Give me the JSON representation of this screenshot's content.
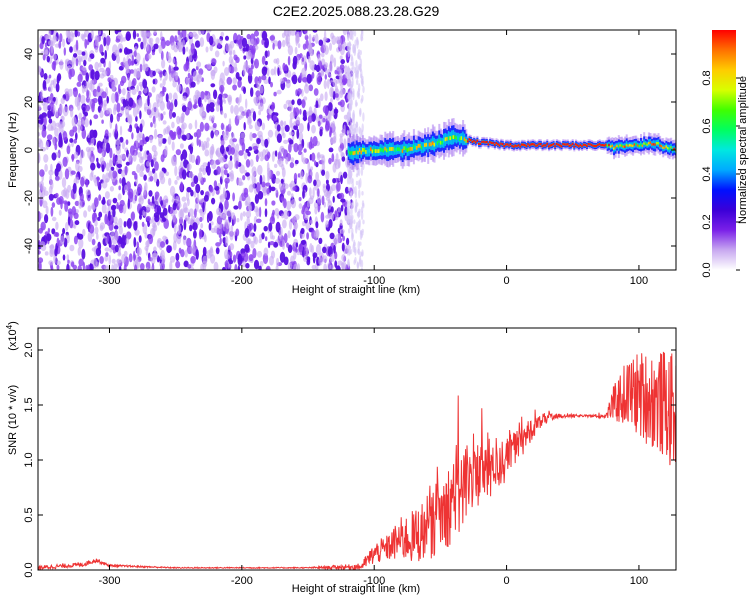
{
  "title": "C2E2.2025.088.23.28.G29",
  "chart_data": [
    {
      "type": "heatmap",
      "xlabel": "Height of straight line (km)",
      "ylabel": "Frequency (Hz)",
      "xlim": [
        -354,
        128
      ],
      "ylim": [
        -50,
        50
      ],
      "xticks": [
        -300,
        -200,
        -100,
        0,
        100
      ],
      "yticks": [
        -40,
        -20,
        0,
        20,
        40
      ],
      "colorbar": {
        "label": "Normalized spectral amplitude",
        "range": [
          0,
          1
        ],
        "ticks": [
          "0.0",
          "0.2",
          "0.4",
          "0.6",
          "0.8"
        ],
        "colormap": [
          "#ffffff",
          "#c8a8f0",
          "#7a20e8",
          "#3b00d8",
          "#0010ff",
          "#00aaff",
          "#00e8e0",
          "#00ff60",
          "#40ff00",
          "#d8ff00",
          "#ffcc00",
          "#ff7000",
          "#ff0000"
        ]
      },
      "regions": [
        {
          "x": [
            -354,
            -120
          ],
          "description_level": 0.2
        },
        {
          "x": [
            -120,
            128
          ],
          "description_level": 0.9
        }
      ],
      "ridge": {
        "x": [
          -120,
          -100,
          -80,
          -60,
          -40,
          -20,
          0,
          20,
          40,
          60,
          75,
          80,
          90,
          100,
          110,
          120,
          128
        ],
        "y": [
          -1,
          0,
          0,
          2,
          5,
          3,
          2,
          2,
          2,
          2,
          2,
          1,
          2,
          2,
          3,
          1,
          0
        ]
      }
    },
    {
      "type": "line",
      "xlabel": "Height of straight line (km)",
      "ylabel": "SNR (10 * v/v)",
      "yscale_label": "(x10^4)",
      "xlim": [
        -354,
        128
      ],
      "ylim": [
        0,
        2.2
      ],
      "xticks": [
        -300,
        -200,
        -100,
        0,
        100
      ],
      "yticks": [
        "0.0",
        "0.5",
        "1.0",
        "1.5",
        "2.0"
      ],
      "series": [
        {
          "color": "#ee3333",
          "x": [
            -354,
            -320,
            -310,
            -300,
            -250,
            -200,
            -150,
            -110,
            -100,
            -90,
            -80,
            -70,
            -60,
            -50,
            -40,
            -30,
            -20,
            -10,
            0,
            10,
            20,
            30,
            40,
            60,
            75,
            80,
            90,
            100,
            110,
            120,
            128
          ],
          "y": [
            0.02,
            0.05,
            0.09,
            0.04,
            0.02,
            0.02,
            0.02,
            0.03,
            0.15,
            0.2,
            0.28,
            0.3,
            0.38,
            0.5,
            0.65,
            0.8,
            0.9,
            0.95,
            1.0,
            1.15,
            1.3,
            1.38,
            1.4,
            1.4,
            1.4,
            1.5,
            1.6,
            1.6,
            1.55,
            1.5,
            1.4
          ],
          "noise": [
            0.02,
            0.02,
            0.02,
            0.01,
            0.005,
            0.005,
            0.005,
            0.03,
            0.1,
            0.12,
            0.2,
            0.25,
            0.3,
            0.35,
            0.4,
            0.4,
            0.35,
            0.3,
            0.2,
            0.15,
            0.1,
            0.05,
            0.02,
            0.01,
            0.02,
            0.15,
            0.3,
            0.4,
            0.45,
            0.5,
            0.55
          ]
        }
      ]
    }
  ]
}
